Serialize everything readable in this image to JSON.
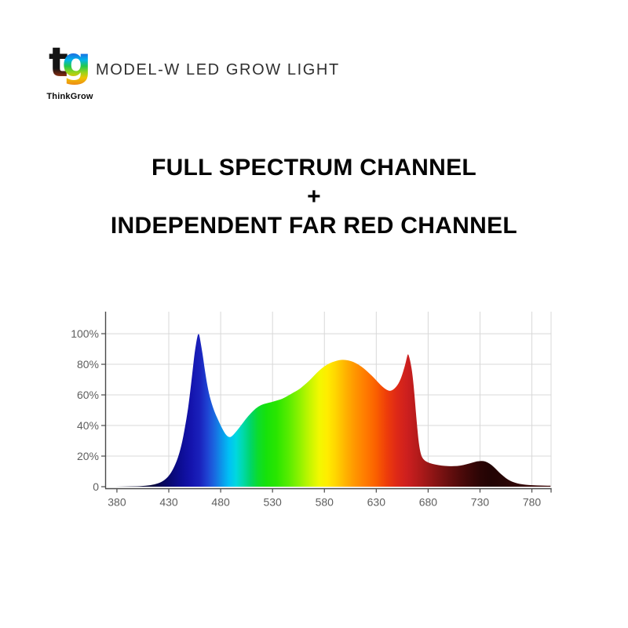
{
  "logo": {
    "brand_name": "ThinkGrow",
    "mark_letters": [
      "t",
      "g"
    ],
    "t_gradient": [
      [
        0,
        "#141414"
      ],
      [
        0.62,
        "#141414"
      ],
      [
        0.76,
        "#7a2a12"
      ],
      [
        0.88,
        "#d96a10"
      ],
      [
        1,
        "#f2a51e"
      ]
    ],
    "g_gradient": [
      [
        0,
        "#101a38"
      ],
      [
        0.14,
        "#1637a6"
      ],
      [
        0.3,
        "#1c6ce2"
      ],
      [
        0.44,
        "#00b5ea"
      ],
      [
        0.57,
        "#21c84d"
      ],
      [
        0.7,
        "#93d41e"
      ],
      [
        0.82,
        "#edc402"
      ],
      [
        1,
        "#ef7d1a"
      ]
    ]
  },
  "header": {
    "product_title": "MODEL-W LED GROW LIGHT"
  },
  "headline": {
    "line1": "FULL SPECTRUM CHANNEL",
    "plus": "+",
    "line2": "INDEPENDENT FAR RED CHANNEL"
  },
  "chart_data": {
    "type": "area",
    "title": "",
    "xlabel": "",
    "ylabel": "",
    "legend": false,
    "grid": true,
    "x_range": [
      368.7,
      798.5
    ],
    "y_range": [
      0,
      114.4
    ],
    "x_ticks": [
      380,
      430,
      480,
      530,
      580,
      630,
      680,
      730,
      780
    ],
    "x_grid": [
      430,
      480,
      530,
      580,
      630,
      680,
      730,
      780
    ],
    "y_ticks": [
      0,
      20,
      40,
      60,
      80,
      100
    ],
    "y_tick_labels": [
      "0",
      "20%",
      "40%",
      "60%",
      "80%",
      "100%"
    ],
    "y_grid": [
      20,
      40,
      60,
      80,
      100
    ],
    "colors": {
      "grid": "#d8d8d8",
      "axis": "#4a4a4a",
      "tick_text": "#5f5f5f"
    },
    "points": [
      [
        372,
        0
      ],
      [
        398,
        0.2
      ],
      [
        408,
        0.6
      ],
      [
        416,
        1.4
      ],
      [
        423,
        3
      ],
      [
        429,
        6
      ],
      [
        434,
        11
      ],
      [
        439,
        19
      ],
      [
        443,
        29
      ],
      [
        447,
        44
      ],
      [
        450,
        58
      ],
      [
        453,
        76
      ],
      [
        455,
        88
      ],
      [
        457,
        96.5
      ],
      [
        458,
        99.3
      ],
      [
        458.7,
        100
      ],
      [
        459.5,
        99
      ],
      [
        461,
        93
      ],
      [
        463,
        85
      ],
      [
        465,
        75
      ],
      [
        468,
        63
      ],
      [
        471,
        55
      ],
      [
        474,
        49
      ],
      [
        477,
        44.5
      ],
      [
        480,
        40
      ],
      [
        483,
        36
      ],
      [
        486,
        33.2
      ],
      [
        488.5,
        32.2
      ],
      [
        491,
        33
      ],
      [
        495,
        36
      ],
      [
        499,
        39.5
      ],
      [
        504,
        44
      ],
      [
        509,
        48
      ],
      [
        514,
        51.3
      ],
      [
        519,
        53.5
      ],
      [
        524,
        54.5
      ],
      [
        529,
        55.3
      ],
      [
        534,
        56.3
      ],
      [
        539,
        57.3
      ],
      [
        545,
        59.5
      ],
      [
        550,
        61.5
      ],
      [
        555,
        63.3
      ],
      [
        560,
        66
      ],
      [
        565,
        69
      ],
      [
        570,
        72.5
      ],
      [
        575,
        76
      ],
      [
        580,
        78.7
      ],
      [
        585,
        80.7
      ],
      [
        590,
        82
      ],
      [
        594,
        82.7
      ],
      [
        598,
        83
      ],
      [
        603,
        82.6
      ],
      [
        608,
        81.6
      ],
      [
        613,
        79.8
      ],
      [
        618,
        77.3
      ],
      [
        623,
        74.3
      ],
      [
        628,
        71
      ],
      [
        632,
        68
      ],
      [
        636,
        65.3
      ],
      [
        640,
        63.3
      ],
      [
        643,
        62.5
      ],
      [
        646,
        63.2
      ],
      [
        649,
        65
      ],
      [
        652,
        68
      ],
      [
        655,
        73
      ],
      [
        658,
        80
      ],
      [
        659.5,
        84.5
      ],
      [
        660.5,
        87
      ],
      [
        661.5,
        85.5
      ],
      [
        663,
        81.5
      ],
      [
        665,
        73
      ],
      [
        667,
        59
      ],
      [
        669,
        42
      ],
      [
        671,
        28
      ],
      [
        673,
        21
      ],
      [
        675,
        18
      ],
      [
        679,
        16
      ],
      [
        684,
        14.9
      ],
      [
        690,
        14
      ],
      [
        696,
        13.6
      ],
      [
        702,
        13.4
      ],
      [
        708,
        13.5
      ],
      [
        714,
        14.1
      ],
      [
        720,
        15.2
      ],
      [
        725,
        16.2
      ],
      [
        729,
        16.8
      ],
      [
        733,
        16.9
      ],
      [
        737,
        16
      ],
      [
        741,
        14.3
      ],
      [
        745,
        11.8
      ],
      [
        749,
        9
      ],
      [
        753,
        6.6
      ],
      [
        757,
        4.6
      ],
      [
        761,
        3.2
      ],
      [
        766,
        2.1
      ],
      [
        771,
        1.5
      ],
      [
        777,
        1.1
      ],
      [
        785,
        0.85
      ],
      [
        792,
        0.7
      ],
      [
        798,
        0.65
      ]
    ],
    "gradient_stops": [
      [
        372,
        "#04041c"
      ],
      [
        415,
        "#06063c"
      ],
      [
        432,
        "#090974"
      ],
      [
        442,
        "#0d0d95"
      ],
      [
        452,
        "#1414ae"
      ],
      [
        460,
        "#1a22bc"
      ],
      [
        467,
        "#1e42d2"
      ],
      [
        474,
        "#1a68e0"
      ],
      [
        481,
        "#0c95ea"
      ],
      [
        488,
        "#00c0f5"
      ],
      [
        495,
        "#00d8de"
      ],
      [
        502,
        "#00d9a6"
      ],
      [
        509,
        "#00d568"
      ],
      [
        516,
        "#0cdc2c"
      ],
      [
        524,
        "#16e20a"
      ],
      [
        534,
        "#2ae600"
      ],
      [
        545,
        "#55ec00"
      ],
      [
        556,
        "#8ef200"
      ],
      [
        566,
        "#c6f600"
      ],
      [
        575,
        "#f2f800"
      ],
      [
        583,
        "#ffec00"
      ],
      [
        591,
        "#ffd500"
      ],
      [
        600,
        "#ffb400"
      ],
      [
        610,
        "#ff9400"
      ],
      [
        620,
        "#ff7a00"
      ],
      [
        630,
        "#fa5f00"
      ],
      [
        640,
        "#ee3d0a"
      ],
      [
        650,
        "#dd2817"
      ],
      [
        660,
        "#cc1f1f"
      ],
      [
        670,
        "#b41b1b"
      ],
      [
        682,
        "#951616"
      ],
      [
        694,
        "#761111"
      ],
      [
        706,
        "#590c0c"
      ],
      [
        718,
        "#400808"
      ],
      [
        730,
        "#2b0505"
      ],
      [
        740,
        "#220404"
      ],
      [
        752,
        "#260505"
      ],
      [
        766,
        "#300707"
      ],
      [
        782,
        "#3a0909"
      ],
      [
        798,
        "#420b0b"
      ]
    ]
  }
}
